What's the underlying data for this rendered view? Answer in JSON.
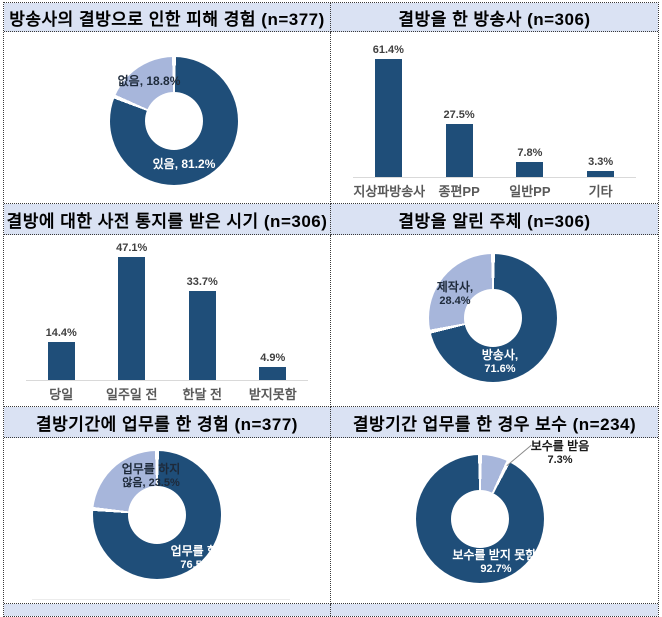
{
  "colors": {
    "dark": "#1F4E79",
    "light": "#A7B6DB",
    "title_bg": "#DAE2F3",
    "axis_line": "#D9D9D9",
    "category_label": "#595959",
    "value_label": "#404040"
  },
  "chart_data": [
    {
      "type": "pie",
      "donut": true,
      "title": "방송사의 결방으로 인한 피해 경험 (n=377)",
      "n": 377,
      "slices": [
        {
          "label": "있음",
          "value": 81.2,
          "color": "dark",
          "display1": "있음, 81.2%",
          "display2": ""
        },
        {
          "label": "없음",
          "value": 18.8,
          "color": "light",
          "display1": "없음, 18.8%",
          "display2": ""
        }
      ]
    },
    {
      "type": "bar",
      "title": "결방을 한 방송사 (n=306)",
      "n": 306,
      "categories": [
        "지상파방송사",
        "종편PP",
        "일반PP",
        "기타"
      ],
      "values": [
        61.4,
        27.5,
        7.8,
        3.3
      ],
      "value_labels": [
        "61.4%",
        "27.5%",
        "7.8%",
        "3.3%"
      ],
      "ylim": [
        0,
        72
      ],
      "grid": false,
      "legend": false
    },
    {
      "type": "bar",
      "title": "결방에 대한 사전 통지를 받은 시기 (n=306)",
      "n": 306,
      "categories": [
        "당일",
        "일주일 전",
        "한달 전",
        "받지못함"
      ],
      "values": [
        14.4,
        47.1,
        33.7,
        4.9
      ],
      "value_labels": [
        "14.4%",
        "47.1%",
        "33.7%",
        "4.9%"
      ],
      "ylim": [
        0,
        52
      ],
      "grid": false,
      "legend": false
    },
    {
      "type": "pie",
      "donut": true,
      "title": "결방을 알린 주체 (n=306)",
      "n": 306,
      "slices": [
        {
          "label": "방송사",
          "value": 71.6,
          "color": "dark",
          "display1": "방송사,",
          "display2": "71.6%"
        },
        {
          "label": "제작사",
          "value": 28.4,
          "color": "light",
          "display1": "제작사,",
          "display2": "28.4%"
        }
      ]
    },
    {
      "type": "pie",
      "donut": true,
      "title": "결방기간에 업무를 한 경험 (n=377)",
      "n": 377,
      "slices": [
        {
          "label": "업무를 함",
          "value": 76.5,
          "color": "dark",
          "display1": "업무를 함,",
          "display2": "76.5%"
        },
        {
          "label": "업무를 하지 않음",
          "value": 23.5,
          "color": "light",
          "display1": "업무를 하지",
          "display2": "않음, 23.5%"
        }
      ]
    },
    {
      "type": "pie",
      "donut": true,
      "title": "결방기간 업무를 한 경우 보수 (n=234)",
      "n": 234,
      "slices": [
        {
          "label": "보수를 받음",
          "value": 7.3,
          "color": "light",
          "display1": "보수를 받음",
          "display2": "7.3%"
        },
        {
          "label": "보수를 받지 못함",
          "value": 92.7,
          "color": "dark",
          "display1": "보수를 받지 못함,",
          "display2": "92.7%"
        }
      ]
    }
  ]
}
